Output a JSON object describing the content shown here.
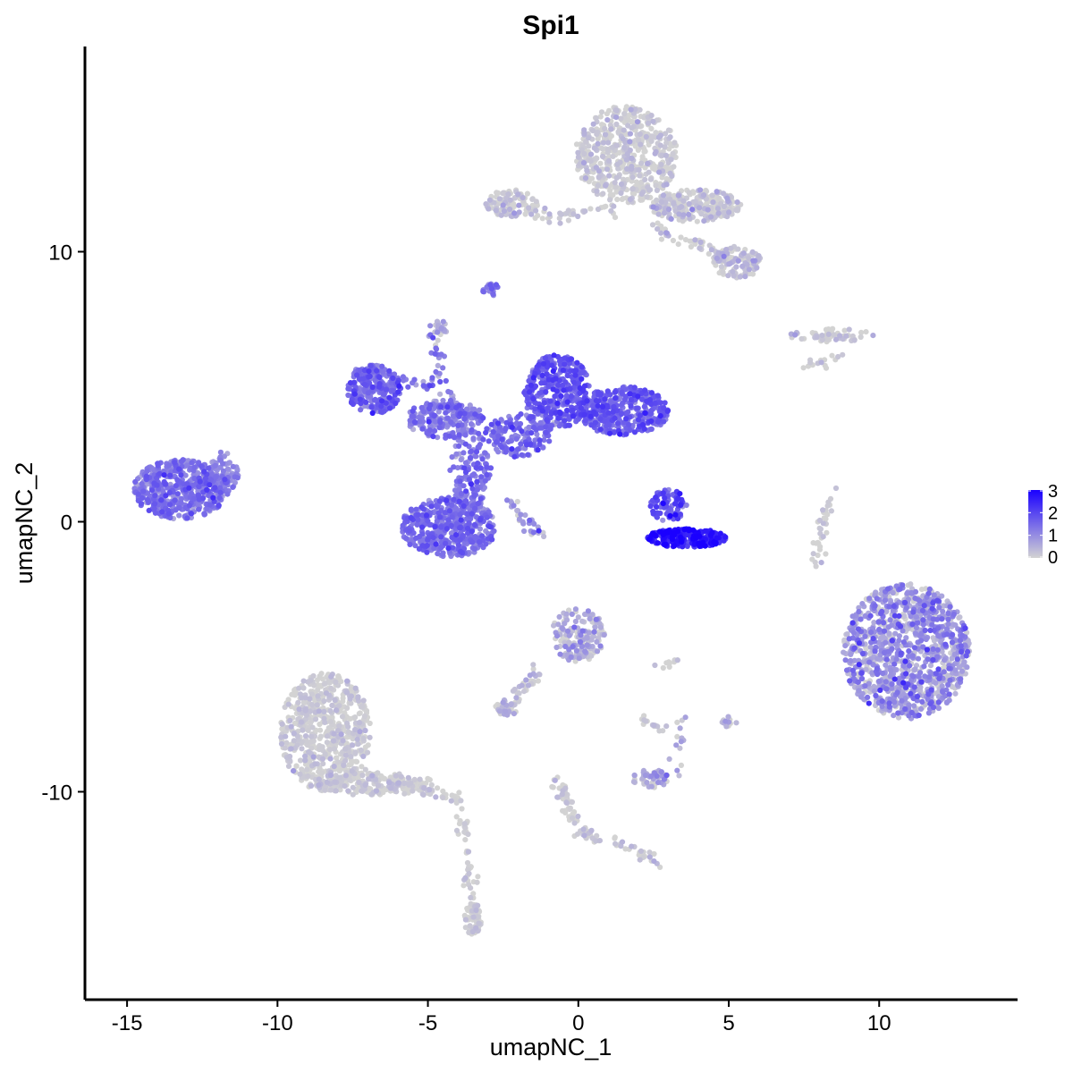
{
  "chart_data": {
    "type": "scatter",
    "title": "Spi1",
    "xlabel": "umapNC_1",
    "ylabel": "umapNC_2",
    "xlim": [
      -16.4,
      14.6
    ],
    "ylim": [
      -17.7,
      17.6
    ],
    "x_ticks": [
      {
        "value": -15,
        "label": "-15"
      },
      {
        "value": -10,
        "label": "-10"
      },
      {
        "value": -5,
        "label": "-5"
      },
      {
        "value": 0,
        "label": "0"
      },
      {
        "value": 5,
        "label": "5"
      },
      {
        "value": 10,
        "label": "10"
      }
    ],
    "y_ticks": [
      {
        "value": 10,
        "label": "10"
      },
      {
        "value": 0,
        "label": "0"
      },
      {
        "value": -10,
        "label": "-10"
      }
    ],
    "grid": false,
    "color_scale": {
      "low_color": "#d3d3d3",
      "high_color": "#1a00ff",
      "min": 0,
      "max": 3,
      "ticks": [
        {
          "value": 3,
          "label": "3"
        },
        {
          "value": 2,
          "label": "2"
        },
        {
          "value": 1,
          "label": "1"
        },
        {
          "value": 0,
          "label": "0"
        }
      ],
      "legend_position": "right"
    },
    "clusters": [
      {
        "cx": -13.2,
        "cy": 1.2,
        "rx": 1.6,
        "ry": 1.1,
        "n": 500,
        "mean": 1.25,
        "sd": 0.35
      },
      {
        "cx": -11.8,
        "cy": 1.8,
        "rx": 0.5,
        "ry": 0.7,
        "n": 60,
        "mean": 1.1,
        "sd": 0.3
      },
      {
        "cx": -6.8,
        "cy": 4.9,
        "rx": 0.9,
        "ry": 0.9,
        "n": 230,
        "mean": 1.45,
        "sd": 0.35
      },
      {
        "cx": -4.4,
        "cy": 3.8,
        "rx": 1.3,
        "ry": 0.7,
        "n": 200,
        "mean": 1.3,
        "sd": 0.35
      },
      {
        "cx": -4.3,
        "cy": -0.2,
        "rx": 1.6,
        "ry": 1.1,
        "n": 450,
        "mean": 1.4,
        "sd": 0.35
      },
      {
        "cx": -3.6,
        "cy": 1.8,
        "rx": 0.7,
        "ry": 1.6,
        "n": 150,
        "mean": 1.3,
        "sd": 0.35
      },
      {
        "cx": -0.7,
        "cy": 4.8,
        "rx": 1.1,
        "ry": 1.4,
        "n": 380,
        "mean": 1.65,
        "sd": 0.35
      },
      {
        "cx": 1.5,
        "cy": 4.1,
        "rx": 1.5,
        "ry": 0.9,
        "n": 380,
        "mean": 1.55,
        "sd": 0.35
      },
      {
        "cx": -2.0,
        "cy": 3.2,
        "rx": 1.1,
        "ry": 0.8,
        "n": 150,
        "mean": 1.4,
        "sd": 0.35
      },
      {
        "cx": 3.6,
        "cy": -0.6,
        "rx": 1.3,
        "ry": 0.35,
        "n": 230,
        "mean": 2.5,
        "sd": 0.4
      },
      {
        "cx": 3.0,
        "cy": 0.6,
        "rx": 0.6,
        "ry": 0.6,
        "n": 80,
        "mean": 1.9,
        "sd": 0.4
      },
      {
        "cx": -4.6,
        "cy": 7.2,
        "rx": 0.25,
        "ry": 0.3,
        "n": 20,
        "mean": 0.4,
        "sd": 0.4
      },
      {
        "cx": -2.9,
        "cy": 8.6,
        "rx": 0.3,
        "ry": 0.25,
        "n": 20,
        "mean": 1.4,
        "sd": 0.3
      },
      {
        "cx": 10.9,
        "cy": -4.8,
        "rx": 2.1,
        "ry": 2.5,
        "n": 1100,
        "mean": 0.7,
        "sd": 0.55
      },
      {
        "cx": 1.6,
        "cy": 13.6,
        "rx": 1.7,
        "ry": 1.8,
        "n": 550,
        "mean": 0.03,
        "sd": 0.25
      },
      {
        "cx": 3.9,
        "cy": 11.7,
        "rx": 1.5,
        "ry": 0.6,
        "n": 250,
        "mean": 0.05,
        "sd": 0.3
      },
      {
        "cx": 5.3,
        "cy": 9.6,
        "rx": 0.8,
        "ry": 0.6,
        "n": 120,
        "mean": 0.08,
        "sd": 0.35
      },
      {
        "cx": -2.2,
        "cy": 11.8,
        "rx": 0.9,
        "ry": 0.5,
        "n": 110,
        "mean": 0.05,
        "sd": 0.3
      },
      {
        "cx": -8.4,
        "cy": -7.8,
        "rx": 1.5,
        "ry": 2.2,
        "n": 650,
        "mean": 0.03,
        "sd": 0.22
      },
      {
        "cx": -6.7,
        "cy": -9.7,
        "rx": 1.9,
        "ry": 0.45,
        "n": 150,
        "mean": 0.03,
        "sd": 0.2
      },
      {
        "cx": -3.5,
        "cy": -14.7,
        "rx": 0.3,
        "ry": 0.6,
        "n": 60,
        "mean": 0.05,
        "sd": 0.2
      },
      {
        "cx": 0.0,
        "cy": -4.2,
        "rx": 0.9,
        "ry": 1.0,
        "n": 160,
        "mean": 0.35,
        "sd": 0.45
      },
      {
        "cx": -2.4,
        "cy": -6.9,
        "rx": 0.4,
        "ry": 0.3,
        "n": 40,
        "mean": 0.25,
        "sd": 0.4
      },
      {
        "cx": 2.4,
        "cy": -9.5,
        "rx": 0.6,
        "ry": 0.35,
        "n": 50,
        "mean": 0.4,
        "sd": 0.45
      },
      {
        "cx": 8.4,
        "cy": 6.9,
        "rx": 1.4,
        "ry": 0.25,
        "n": 60,
        "mean": 0.05,
        "sd": 0.25
      },
      {
        "cx": 5.0,
        "cy": -7.4,
        "rx": 0.3,
        "ry": 0.2,
        "n": 15,
        "mean": 0.2,
        "sd": 0.3
      }
    ],
    "trails": [
      {
        "x0": -5.0,
        "y0": 7.3,
        "x1": -4.0,
        "y1": 3.8,
        "n": 40,
        "mean": 0.9,
        "sd": 0.5
      },
      {
        "x0": -2.5,
        "y0": 1.0,
        "x1": -1.2,
        "y1": -0.6,
        "n": 30,
        "mean": 0.8,
        "sd": 0.5
      },
      {
        "x0": -7.2,
        "y0": 5.6,
        "x1": -4.6,
        "y1": 4.9,
        "n": 40,
        "mean": 1.1,
        "sd": 0.4
      },
      {
        "x0": -11.8,
        "y0": 2.6,
        "x1": -11.6,
        "y1": 1.4,
        "n": 15,
        "mean": 0.9,
        "sd": 0.4
      },
      {
        "x0": 8.4,
        "y0": 1.1,
        "x1": 7.8,
        "y1": -1.6,
        "n": 35,
        "mean": 0.05,
        "sd": 0.2
      },
      {
        "x0": -7.2,
        "y0": -9.4,
        "x1": -3.9,
        "y1": -10.3,
        "n": 70,
        "mean": 0.04,
        "sd": 0.2
      },
      {
        "x0": -3.9,
        "y0": -10.5,
        "x1": -3.5,
        "y1": -14.2,
        "n": 45,
        "mean": 0.03,
        "sd": 0.2
      },
      {
        "x0": -0.8,
        "y0": -9.5,
        "x1": 0.0,
        "y1": -11.4,
        "n": 45,
        "mean": 0.05,
        "sd": 0.2
      },
      {
        "x0": 0.0,
        "y0": -11.4,
        "x1": 2.6,
        "y1": -12.5,
        "n": 45,
        "mean": 0.1,
        "sd": 0.25
      },
      {
        "x0": -1.3,
        "y0": -5.4,
        "x1": -2.2,
        "y1": -6.8,
        "n": 30,
        "mean": 0.2,
        "sd": 0.3
      },
      {
        "x0": 1.3,
        "y0": 11.6,
        "x1": -1.3,
        "y1": 11.3,
        "n": 40,
        "mean": 0.1,
        "sd": 0.3
      },
      {
        "x0": 2.5,
        "y0": 10.9,
        "x1": 4.9,
        "y1": 9.8,
        "n": 40,
        "mean": 0.1,
        "sd": 0.35
      },
      {
        "x0": 7.6,
        "y0": 5.8,
        "x1": 8.9,
        "y1": 6.2,
        "n": 15,
        "mean": 0.05,
        "sd": 0.2
      },
      {
        "x0": 2.0,
        "y0": -7.3,
        "x1": 2.8,
        "y1": -7.7,
        "n": 15,
        "mean": 0.05,
        "sd": 0.2
      },
      {
        "x0": 3.3,
        "y0": -5.1,
        "x1": 2.7,
        "y1": -5.3,
        "n": 10,
        "mean": 0.05,
        "sd": 0.2
      },
      {
        "x0": 3.6,
        "y0": -7.3,
        "x1": 3.0,
        "y1": -9.6,
        "n": 15,
        "mean": 0.3,
        "sd": 0.4
      }
    ]
  }
}
